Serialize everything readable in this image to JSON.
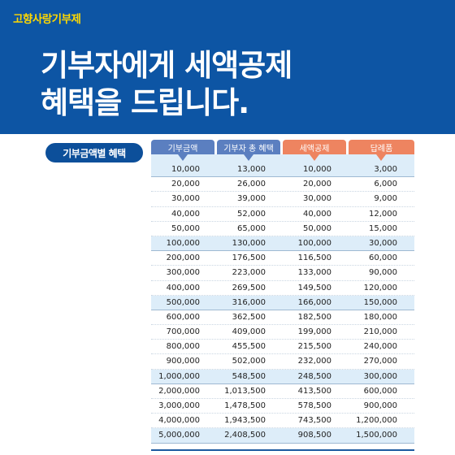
{
  "banner": {
    "tag": "고향사랑기부제",
    "headline_line1": "기부자에게 세액공제",
    "headline_line2": "혜택을 드립니다."
  },
  "section_label": "기부금액별 혜택",
  "table": {
    "headers": [
      "기부금액",
      "기부자 총 혜택",
      "세액공제",
      "답례품"
    ],
    "rows": [
      [
        "10,000",
        "13,000",
        "10,000",
        "3,000"
      ],
      [
        "20,000",
        "26,000",
        "20,000",
        "6,000"
      ],
      [
        "30,000",
        "39,000",
        "30,000",
        "9,000"
      ],
      [
        "40,000",
        "52,000",
        "40,000",
        "12,000"
      ],
      [
        "50,000",
        "65,000",
        "50,000",
        "15,000"
      ],
      [
        "100,000",
        "130,000",
        "100,000",
        "30,000"
      ],
      [
        "200,000",
        "176,500",
        "116,500",
        "60,000"
      ],
      [
        "300,000",
        "223,000",
        "133,000",
        "90,000"
      ],
      [
        "400,000",
        "269,500",
        "149,500",
        "120,000"
      ],
      [
        "500,000",
        "316,000",
        "166,000",
        "150,000"
      ],
      [
        "600,000",
        "362,500",
        "182,500",
        "180,000"
      ],
      [
        "700,000",
        "409,000",
        "199,000",
        "210,000"
      ],
      [
        "800,000",
        "455,500",
        "215,500",
        "240,000"
      ],
      [
        "900,000",
        "502,000",
        "232,000",
        "270,000"
      ],
      [
        "1,000,000",
        "548,500",
        "248,500",
        "300,000"
      ],
      [
        "2,000,000",
        "1,013,500",
        "413,500",
        "600,000"
      ],
      [
        "3,000,000",
        "1,478,500",
        "578,500",
        "900,000"
      ],
      [
        "4,000,000",
        "1,943,500",
        "743,500",
        "1,200,000"
      ],
      [
        "5,000,000",
        "2,408,500",
        "908,500",
        "1,500,000"
      ]
    ],
    "highlight_rows": [
      0,
      5,
      9,
      14,
      18
    ]
  },
  "colors": {
    "banner": "#0d55a4",
    "tag": "#ffd800",
    "header_blue": "#5b7fc0",
    "header_orange": "#ee8460",
    "row_highlight": "#ddedf9"
  }
}
